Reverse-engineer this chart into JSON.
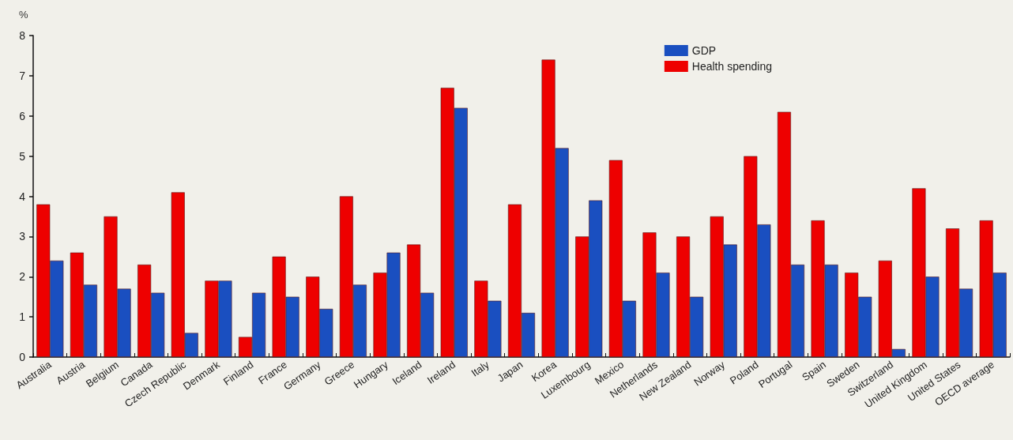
{
  "chart_data": {
    "type": "bar",
    "ylabel": "%",
    "categories": [
      "Australia",
      "Austria",
      "Belgium",
      "Canada",
      "Czech Republic",
      "Denmark",
      "Finland",
      "France",
      "Germany",
      "Greece",
      "Hungary",
      "Iceland",
      "Ireland",
      "Italy",
      "Japan",
      "Korea",
      "Luxembourg",
      "Mexico",
      "Netherlands",
      "New Zealand",
      "Norway",
      "Poland",
      "Portugal",
      "Spain",
      "Sweden",
      "Switzerland",
      "United Kingdom",
      "United States",
      "OECD average"
    ],
    "series": [
      {
        "name": "Health spending",
        "color": "#ee0000",
        "values": [
          3.8,
          2.6,
          3.5,
          2.3,
          4.1,
          1.9,
          0.5,
          2.5,
          2.0,
          4.0,
          2.1,
          2.8,
          6.7,
          1.9,
          3.8,
          7.4,
          3.0,
          4.9,
          3.1,
          3.0,
          3.5,
          5.0,
          6.1,
          3.4,
          2.1,
          2.4,
          4.2,
          3.2,
          3.4
        ]
      },
      {
        "name": "GDP",
        "color": "#1a4fc0",
        "values": [
          2.4,
          1.8,
          1.7,
          1.6,
          0.6,
          1.9,
          1.6,
          1.5,
          1.2,
          1.8,
          2.6,
          1.6,
          6.2,
          1.4,
          1.1,
          5.2,
          3.9,
          1.4,
          2.1,
          1.5,
          2.8,
          3.3,
          2.3,
          2.3,
          1.5,
          0.2,
          2.0,
          1.7,
          2.1
        ]
      }
    ],
    "ylim": [
      0,
      8
    ],
    "yticks": [
      0,
      1,
      2,
      3,
      4,
      5,
      6,
      7,
      8
    ],
    "grid": false,
    "legend": "top right"
  }
}
